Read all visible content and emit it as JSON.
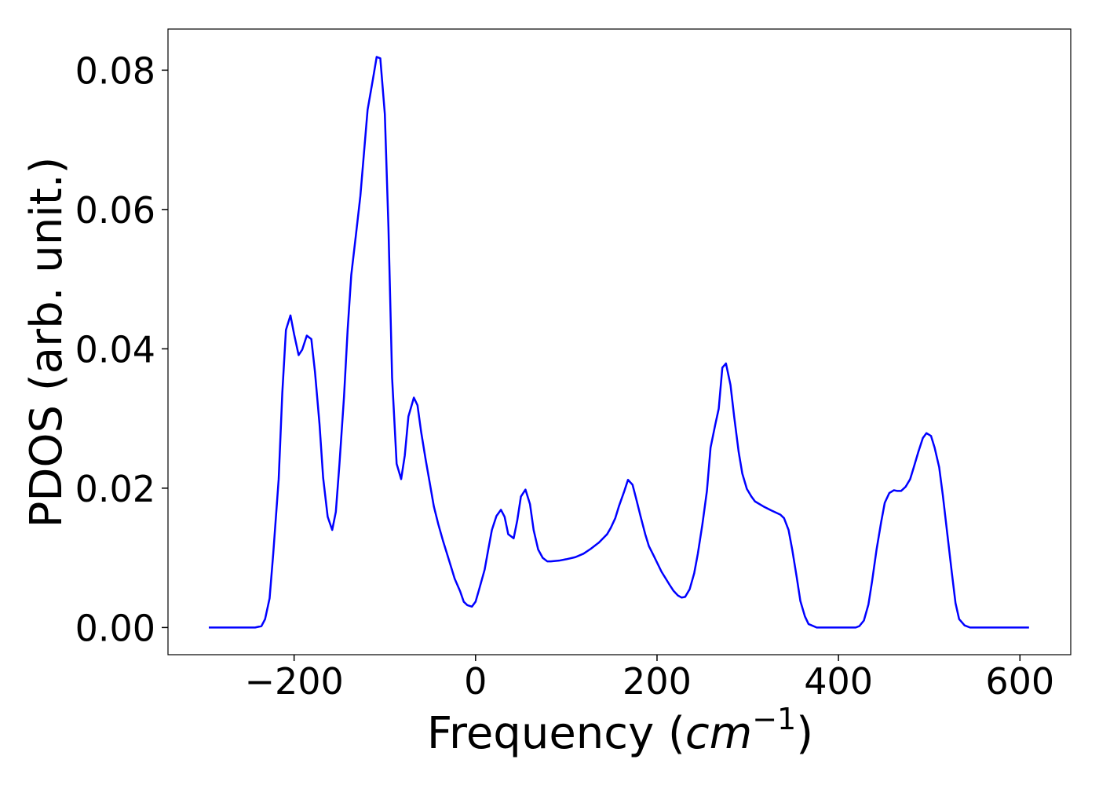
{
  "chart_data": {
    "type": "line",
    "xlabel": [
      "Frequency (",
      "cm",
      "−1",
      ")"
    ],
    "ylabel": "PDOS (arb. unit.)",
    "color": "#0000ff",
    "x": [
      -294,
      -243,
      -236,
      -232,
      -227,
      -223,
      -217,
      -213,
      -209,
      -204,
      -200,
      -195,
      -191,
      -186,
      -181,
      -177,
      -172,
      -168,
      -163,
      -158,
      -154,
      -150,
      -145,
      -141,
      -137,
      -132,
      -127,
      -123,
      -119,
      -113,
      -109,
      -105,
      -100,
      -96,
      -92,
      -87,
      -82,
      -78,
      -74,
      -68,
      -64,
      -60,
      -55,
      -50,
      -46,
      -41,
      -36,
      -31,
      -27,
      -23,
      -17,
      -13,
      -9,
      -4,
      0,
      4,
      10,
      14,
      18,
      23,
      28,
      32,
      36,
      42,
      46,
      50,
      55,
      60,
      64,
      69,
      74,
      79,
      83,
      92,
      100,
      110,
      119,
      127,
      136,
      145,
      149,
      154,
      158,
      164,
      168,
      173,
      177,
      182,
      187,
      191,
      196,
      205,
      214,
      218,
      223,
      227,
      231,
      236,
      241,
      245,
      250,
      255,
      259,
      264,
      268,
      272,
      276,
      281,
      285,
      290,
      294,
      299,
      304,
      308,
      317,
      326,
      336,
      340,
      345,
      349,
      354,
      358,
      363,
      367,
      376,
      419,
      423,
      428,
      433,
      437,
      442,
      447,
      451,
      456,
      461,
      465,
      469,
      474,
      479,
      483,
      488,
      493,
      497,
      502,
      506,
      511,
      515,
      520,
      525,
      529,
      533,
      539,
      545,
      610
    ],
    "values": [
      0,
      0,
      0.0002,
      0.0012,
      0.0042,
      0.0106,
      0.0213,
      0.0337,
      0.0427,
      0.0448,
      0.0421,
      0.0391,
      0.0399,
      0.0419,
      0.0414,
      0.0367,
      0.0292,
      0.0215,
      0.0159,
      0.014,
      0.0166,
      0.0235,
      0.0331,
      0.0427,
      0.0506,
      0.0562,
      0.0619,
      0.0681,
      0.0743,
      0.0788,
      0.0819,
      0.0817,
      0.0737,
      0.0574,
      0.0359,
      0.0235,
      0.0213,
      0.0247,
      0.0303,
      0.033,
      0.0319,
      0.0281,
      0.0241,
      0.0204,
      0.0174,
      0.0148,
      0.0125,
      0.0104,
      0.0087,
      0.007,
      0.0052,
      0.0037,
      0.0032,
      0.003,
      0.0037,
      0.0055,
      0.0083,
      0.0112,
      0.014,
      0.016,
      0.0169,
      0.0159,
      0.0134,
      0.0128,
      0.0154,
      0.0188,
      0.0198,
      0.0177,
      0.014,
      0.0112,
      0.01,
      0.0095,
      0.0095,
      0.0096,
      0.0098,
      0.0101,
      0.0106,
      0.0113,
      0.0122,
      0.0134,
      0.0143,
      0.0157,
      0.0174,
      0.0196,
      0.0212,
      0.0205,
      0.0185,
      0.0159,
      0.0134,
      0.0117,
      0.0104,
      0.008,
      0.0061,
      0.0053,
      0.0046,
      0.0043,
      0.0044,
      0.0055,
      0.0078,
      0.0106,
      0.0148,
      0.0196,
      0.0258,
      0.029,
      0.0314,
      0.0373,
      0.0379,
      0.0348,
      0.0303,
      0.0252,
      0.0221,
      0.0199,
      0.0188,
      0.0181,
      0.0174,
      0.0168,
      0.0162,
      0.0157,
      0.014,
      0.0112,
      0.0072,
      0.0038,
      0.0016,
      0.0005,
      0,
      0,
      0.0002,
      0.001,
      0.0033,
      0.0066,
      0.0112,
      0.0151,
      0.0179,
      0.0193,
      0.0197,
      0.0196,
      0.0196,
      0.0202,
      0.0213,
      0.023,
      0.0252,
      0.0272,
      0.0279,
      0.0275,
      0.0258,
      0.023,
      0.019,
      0.0134,
      0.0078,
      0.0035,
      0.0012,
      0.0003,
      0,
      0
    ],
    "xlim": [
      -339,
      656
    ],
    "ylim": [
      -0.0039,
      0.0859
    ],
    "xticks": [
      {
        "value": -200,
        "label": "−200"
      },
      0,
      200,
      400,
      600
    ],
    "yticks": [
      {
        "value": 0,
        "label": "0.00"
      },
      {
        "value": 0.02,
        "label": "0.02"
      },
      {
        "value": 0.04,
        "label": "0.04"
      },
      {
        "value": 0.06,
        "label": "0.06"
      },
      {
        "value": 0.08,
        "label": "0.08"
      }
    ],
    "grid": false
  }
}
